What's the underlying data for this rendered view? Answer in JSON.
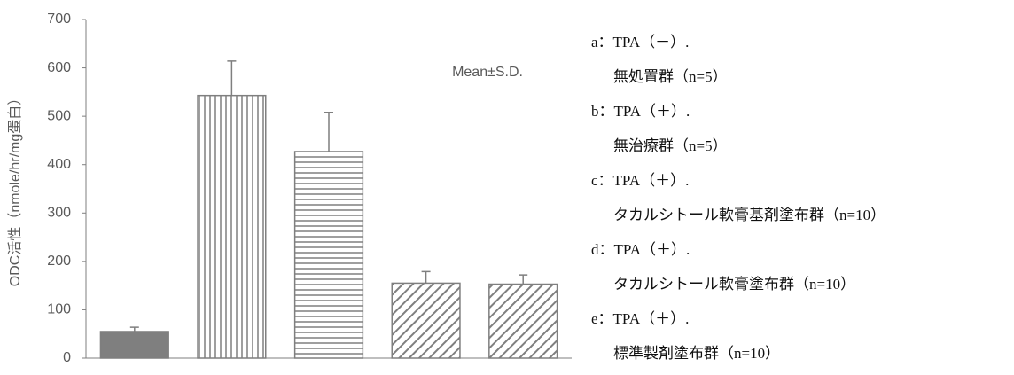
{
  "chart_data": {
    "type": "bar",
    "y_label": "ODC活性（nmole/hr/mg蛋白）",
    "annotation": "Mean±S.D.",
    "categories": [
      null,
      null,
      null,
      null,
      null
    ],
    "values": [
      55,
      543,
      427,
      155,
      153
    ],
    "errors": [
      9,
      71,
      81,
      24,
      19
    ],
    "patterns": [
      "solid",
      "vertical",
      "horizontal",
      "diagonal",
      "diagonal"
    ],
    "color": "#7f7f7f",
    "ylim": [
      0,
      700
    ],
    "yticks": [
      0,
      100,
      200,
      300,
      400,
      500,
      600,
      700
    ],
    "notes": [
      {
        "label": "a：TPA（－）.",
        "text": "無処置群（n=5）"
      },
      {
        "label": "b：TPA（＋）.",
        "text": "無治療群（n=5）"
      },
      {
        "label": "c：TPA（＋）.",
        "text": "タカルシトール軟膏基剤塗布群（n=10）"
      },
      {
        "label": "d：TPA（＋）.",
        "text": "タカルシトール軟膏塗布群（n=10）"
      },
      {
        "label": "e：TPA（＋）.",
        "text": "標準製剤塗布群（n=10）"
      }
    ]
  }
}
